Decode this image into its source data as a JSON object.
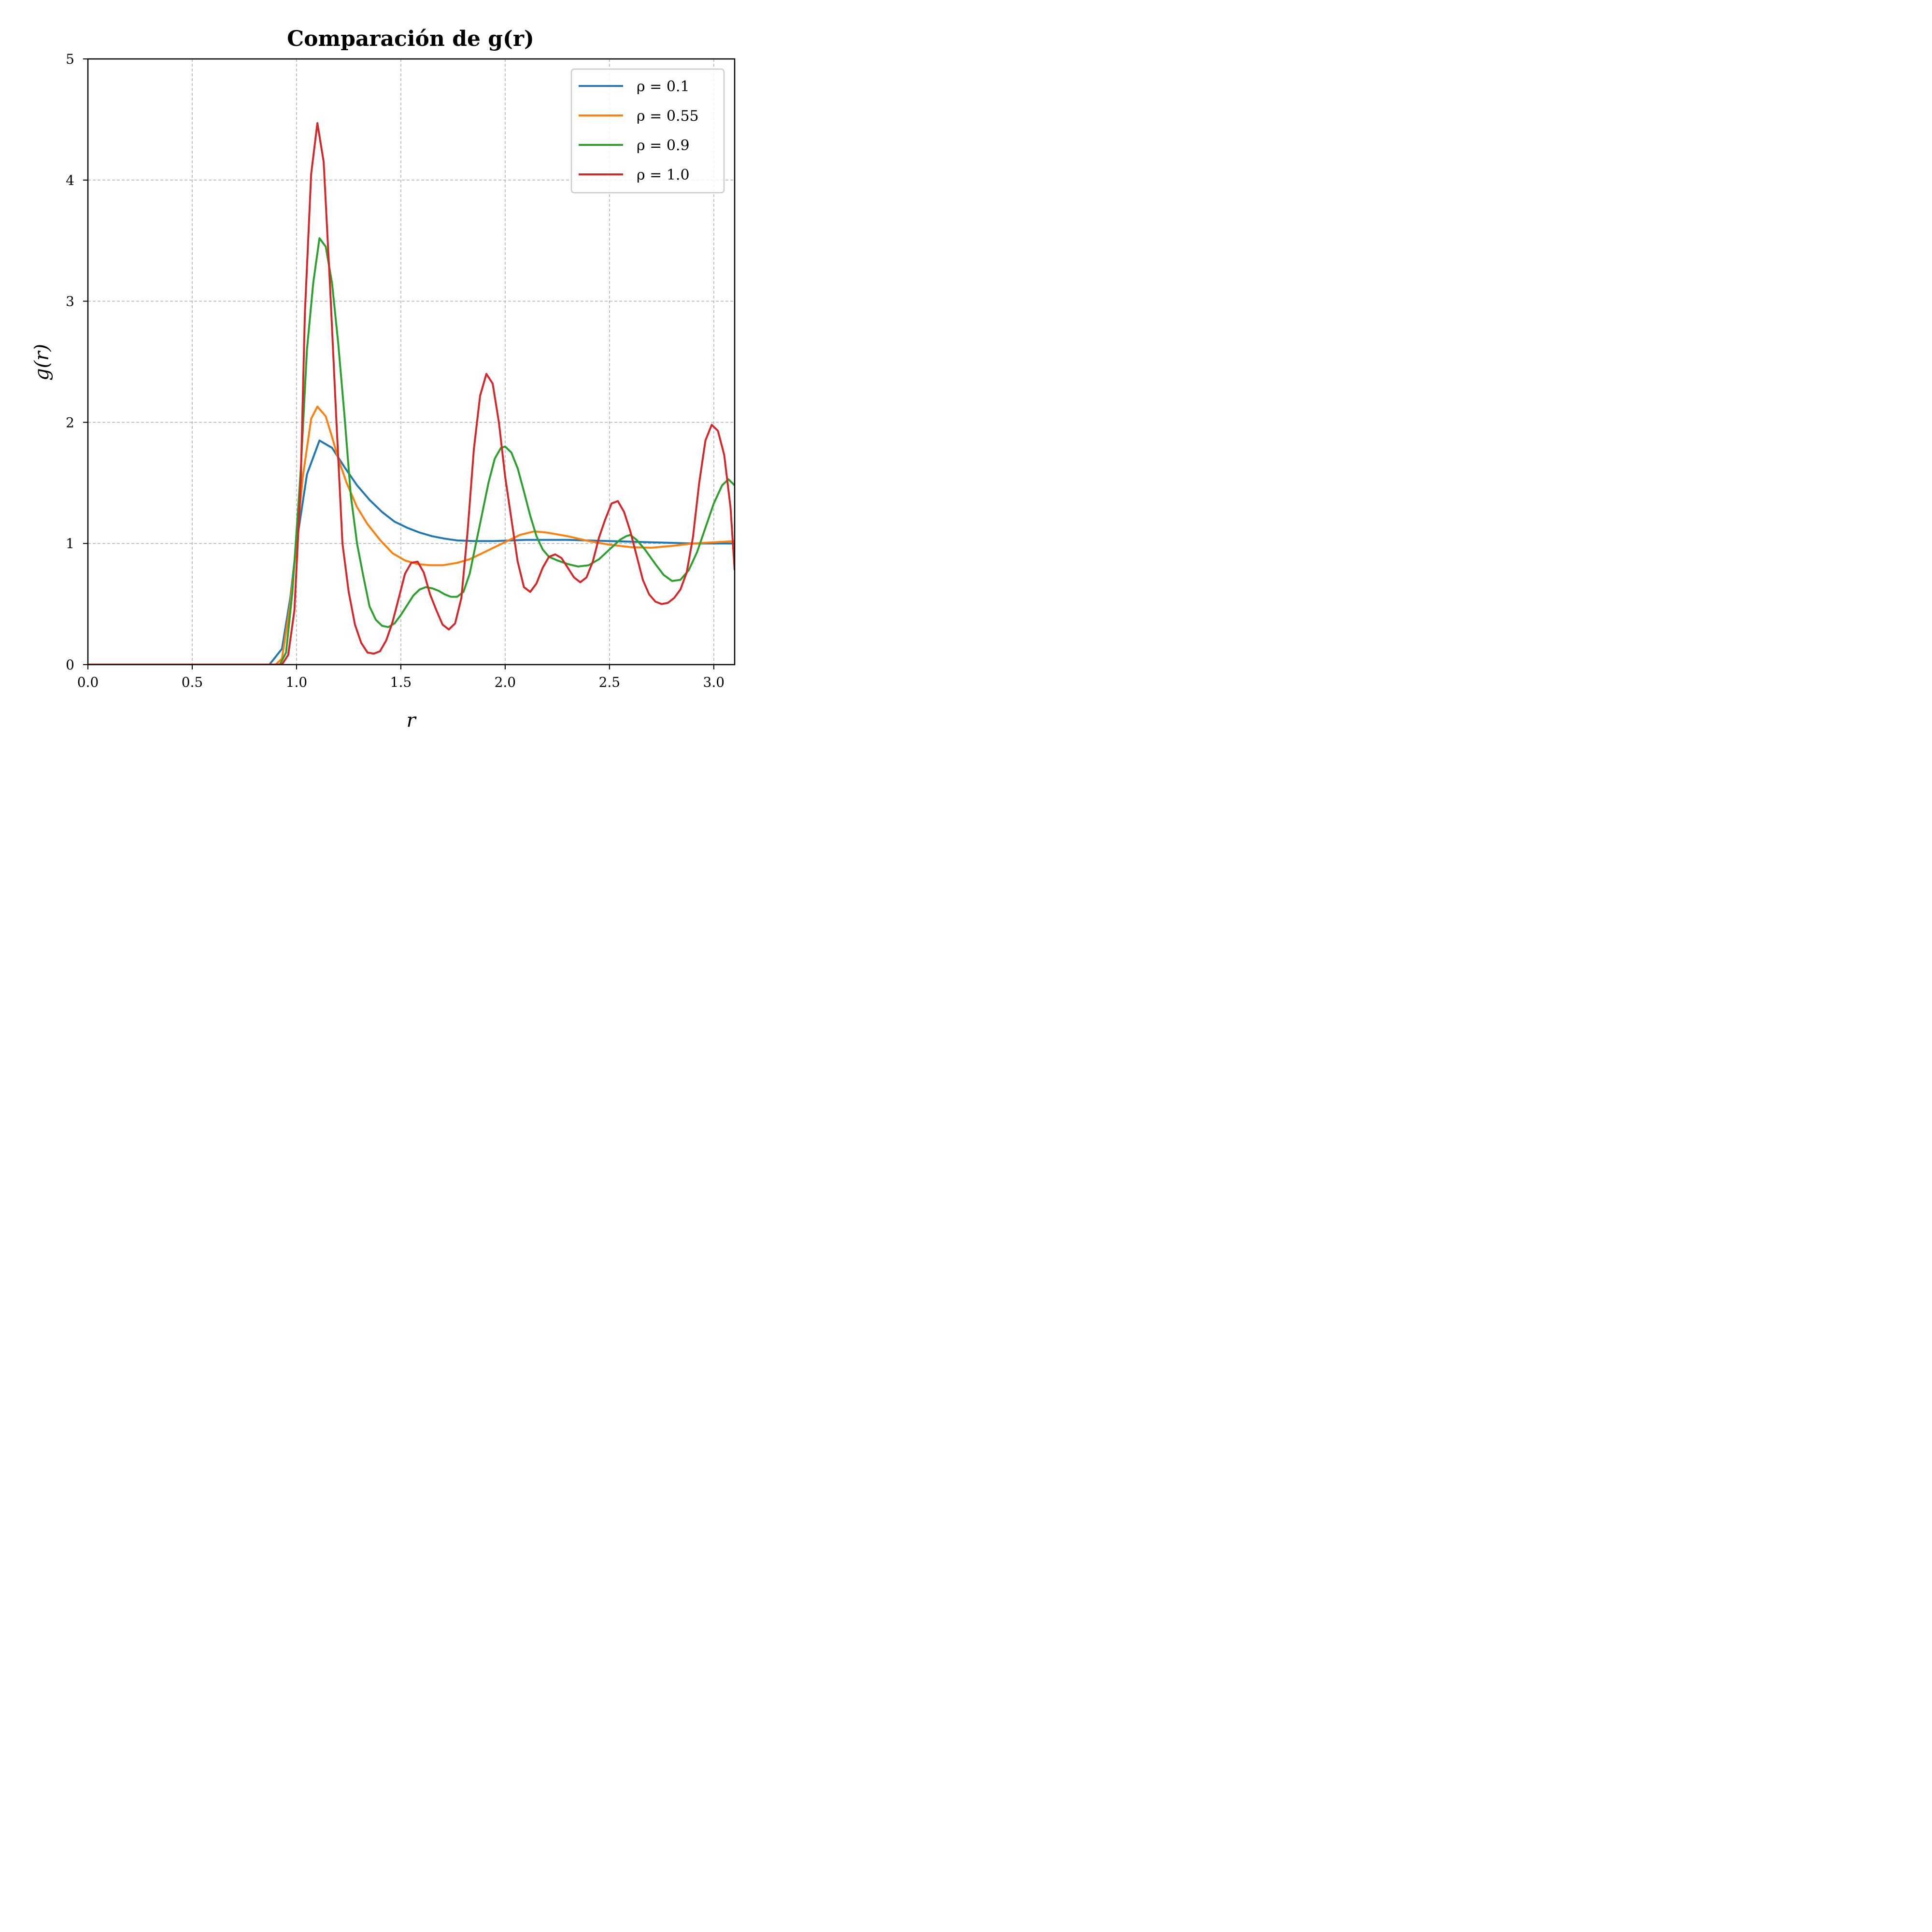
{
  "chart_data": {
    "type": "line",
    "title": "Comparación de g(r)",
    "xlabel": "r",
    "ylabel": "g(r)",
    "xlim": [
      0,
      3.1
    ],
    "ylim": [
      0,
      5
    ],
    "xticks": [
      0.0,
      0.5,
      1.0,
      1.5,
      2.0,
      2.5,
      3.0
    ],
    "xtick_labels": [
      "0.0",
      "0.5",
      "1.0",
      "1.5",
      "2.0",
      "2.5",
      "3.0"
    ],
    "yticks": [
      0,
      1,
      2,
      3,
      4,
      5
    ],
    "ytick_labels": [
      "0",
      "1",
      "2",
      "3",
      "4",
      "5"
    ],
    "grid": true,
    "legend_position": "top-right",
    "series": [
      {
        "name": "ρ = 0.1",
        "color": "#1f77b4",
        "points": [
          [
            0,
            0
          ],
          [
            0.87,
            0
          ],
          [
            0.93,
            0.13
          ],
          [
            0.97,
            0.55
          ],
          [
            1.0,
            1.0
          ],
          [
            1.05,
            1.57
          ],
          [
            1.11,
            1.85
          ],
          [
            1.17,
            1.79
          ],
          [
            1.23,
            1.63
          ],
          [
            1.29,
            1.48
          ],
          [
            1.35,
            1.36
          ],
          [
            1.41,
            1.26
          ],
          [
            1.47,
            1.18
          ],
          [
            1.53,
            1.13
          ],
          [
            1.59,
            1.09
          ],
          [
            1.65,
            1.06
          ],
          [
            1.71,
            1.04
          ],
          [
            1.77,
            1.025
          ],
          [
            1.85,
            1.02
          ],
          [
            1.95,
            1.02
          ],
          [
            2.1,
            1.03
          ],
          [
            2.3,
            1.03
          ],
          [
            2.5,
            1.02
          ],
          [
            2.7,
            1.01
          ],
          [
            2.9,
            1.0
          ],
          [
            3.1,
            1.0
          ]
        ]
      },
      {
        "name": "ρ = 0.55",
        "color": "#ff7f0e",
        "points": [
          [
            0,
            0
          ],
          [
            0.9,
            0
          ],
          [
            0.93,
            0.05
          ],
          [
            0.97,
            0.5
          ],
          [
            1.0,
            1.0
          ],
          [
            1.03,
            1.55
          ],
          [
            1.07,
            2.03
          ],
          [
            1.1,
            2.13
          ],
          [
            1.14,
            2.05
          ],
          [
            1.17,
            1.88
          ],
          [
            1.2,
            1.7
          ],
          [
            1.24,
            1.5
          ],
          [
            1.29,
            1.3
          ],
          [
            1.34,
            1.16
          ],
          [
            1.4,
            1.03
          ],
          [
            1.46,
            0.92
          ],
          [
            1.52,
            0.86
          ],
          [
            1.58,
            0.83
          ],
          [
            1.64,
            0.82
          ],
          [
            1.7,
            0.82
          ],
          [
            1.77,
            0.84
          ],
          [
            1.83,
            0.87
          ],
          [
            1.89,
            0.92
          ],
          [
            1.95,
            0.97
          ],
          [
            2.01,
            1.02
          ],
          [
            2.07,
            1.07
          ],
          [
            2.14,
            1.1
          ],
          [
            2.2,
            1.09
          ],
          [
            2.3,
            1.06
          ],
          [
            2.4,
            1.02
          ],
          [
            2.5,
            0.99
          ],
          [
            2.6,
            0.97
          ],
          [
            2.7,
            0.965
          ],
          [
            2.8,
            0.98
          ],
          [
            2.9,
            1.0
          ],
          [
            3.0,
            1.01
          ],
          [
            3.1,
            1.02
          ]
        ]
      },
      {
        "name": "ρ = 0.9",
        "color": "#2ca02c",
        "points": [
          [
            0,
            0
          ],
          [
            0.92,
            0
          ],
          [
            0.95,
            0.1
          ],
          [
            0.98,
            0.6
          ],
          [
            1.02,
            1.6
          ],
          [
            1.05,
            2.6
          ],
          [
            1.08,
            3.15
          ],
          [
            1.11,
            3.52
          ],
          [
            1.14,
            3.45
          ],
          [
            1.17,
            3.15
          ],
          [
            1.2,
            2.65
          ],
          [
            1.23,
            2.05
          ],
          [
            1.26,
            1.4
          ],
          [
            1.29,
            1.0
          ],
          [
            1.32,
            0.73
          ],
          [
            1.35,
            0.48
          ],
          [
            1.38,
            0.37
          ],
          [
            1.41,
            0.32
          ],
          [
            1.44,
            0.31
          ],
          [
            1.47,
            0.34
          ],
          [
            1.5,
            0.41
          ],
          [
            1.53,
            0.49
          ],
          [
            1.56,
            0.57
          ],
          [
            1.59,
            0.62
          ],
          [
            1.62,
            0.64
          ],
          [
            1.65,
            0.63
          ],
          [
            1.68,
            0.61
          ],
          [
            1.71,
            0.58
          ],
          [
            1.74,
            0.56
          ],
          [
            1.77,
            0.56
          ],
          [
            1.8,
            0.6
          ],
          [
            1.83,
            0.75
          ],
          [
            1.86,
            1.0
          ],
          [
            1.89,
            1.25
          ],
          [
            1.92,
            1.5
          ],
          [
            1.95,
            1.7
          ],
          [
            1.98,
            1.79
          ],
          [
            2.0,
            1.8
          ],
          [
            2.03,
            1.75
          ],
          [
            2.06,
            1.62
          ],
          [
            2.09,
            1.43
          ],
          [
            2.12,
            1.23
          ],
          [
            2.15,
            1.06
          ],
          [
            2.18,
            0.95
          ],
          [
            2.21,
            0.89
          ],
          [
            2.25,
            0.86
          ],
          [
            2.3,
            0.83
          ],
          [
            2.35,
            0.81
          ],
          [
            2.4,
            0.82
          ],
          [
            2.45,
            0.87
          ],
          [
            2.5,
            0.95
          ],
          [
            2.55,
            1.03
          ],
          [
            2.58,
            1.06
          ],
          [
            2.6,
            1.07
          ],
          [
            2.63,
            1.03
          ],
          [
            2.67,
            0.95
          ],
          [
            2.72,
            0.83
          ],
          [
            2.76,
            0.74
          ],
          [
            2.8,
            0.69
          ],
          [
            2.84,
            0.7
          ],
          [
            2.88,
            0.78
          ],
          [
            2.92,
            0.93
          ],
          [
            2.96,
            1.13
          ],
          [
            3.0,
            1.33
          ],
          [
            3.04,
            1.48
          ],
          [
            3.07,
            1.53
          ],
          [
            3.1,
            1.48
          ]
        ]
      },
      {
        "name": "ρ = 1.0",
        "color": "#d62728",
        "points": [
          [
            0,
            0
          ],
          [
            0.93,
            0
          ],
          [
            0.96,
            0.08
          ],
          [
            0.99,
            0.45
          ],
          [
            1.02,
            1.5
          ],
          [
            1.04,
            2.9
          ],
          [
            1.07,
            4.05
          ],
          [
            1.1,
            4.47
          ],
          [
            1.13,
            4.15
          ],
          [
            1.16,
            3.15
          ],
          [
            1.19,
            2.05
          ],
          [
            1.22,
            1.0
          ],
          [
            1.25,
            0.6
          ],
          [
            1.28,
            0.33
          ],
          [
            1.31,
            0.18
          ],
          [
            1.34,
            0.1
          ],
          [
            1.37,
            0.09
          ],
          [
            1.4,
            0.11
          ],
          [
            1.43,
            0.2
          ],
          [
            1.46,
            0.35
          ],
          [
            1.49,
            0.55
          ],
          [
            1.52,
            0.75
          ],
          [
            1.55,
            0.84
          ],
          [
            1.58,
            0.85
          ],
          [
            1.61,
            0.76
          ],
          [
            1.64,
            0.58
          ],
          [
            1.67,
            0.45
          ],
          [
            1.7,
            0.33
          ],
          [
            1.73,
            0.29
          ],
          [
            1.76,
            0.34
          ],
          [
            1.79,
            0.55
          ],
          [
            1.82,
            1.1
          ],
          [
            1.85,
            1.78
          ],
          [
            1.88,
            2.22
          ],
          [
            1.91,
            2.4
          ],
          [
            1.94,
            2.32
          ],
          [
            1.97,
            2.0
          ],
          [
            2.0,
            1.55
          ],
          [
            2.03,
            1.2
          ],
          [
            2.06,
            0.85
          ],
          [
            2.09,
            0.64
          ],
          [
            2.12,
            0.6
          ],
          [
            2.15,
            0.67
          ],
          [
            2.18,
            0.8
          ],
          [
            2.21,
            0.89
          ],
          [
            2.24,
            0.91
          ],
          [
            2.27,
            0.88
          ],
          [
            2.3,
            0.8
          ],
          [
            2.33,
            0.72
          ],
          [
            2.36,
            0.68
          ],
          [
            2.39,
            0.72
          ],
          [
            2.42,
            0.85
          ],
          [
            2.45,
            1.05
          ],
          [
            2.48,
            1.2
          ],
          [
            2.51,
            1.33
          ],
          [
            2.54,
            1.35
          ],
          [
            2.57,
            1.26
          ],
          [
            2.6,
            1.1
          ],
          [
            2.63,
            0.9
          ],
          [
            2.66,
            0.7
          ],
          [
            2.69,
            0.58
          ],
          [
            2.72,
            0.52
          ],
          [
            2.75,
            0.5
          ],
          [
            2.78,
            0.51
          ],
          [
            2.81,
            0.55
          ],
          [
            2.84,
            0.62
          ],
          [
            2.87,
            0.76
          ],
          [
            2.9,
            1.05
          ],
          [
            2.93,
            1.5
          ],
          [
            2.96,
            1.85
          ],
          [
            2.99,
            1.98
          ],
          [
            3.02,
            1.93
          ],
          [
            3.05,
            1.73
          ],
          [
            3.08,
            1.3
          ],
          [
            3.1,
            0.78
          ]
        ]
      }
    ]
  }
}
